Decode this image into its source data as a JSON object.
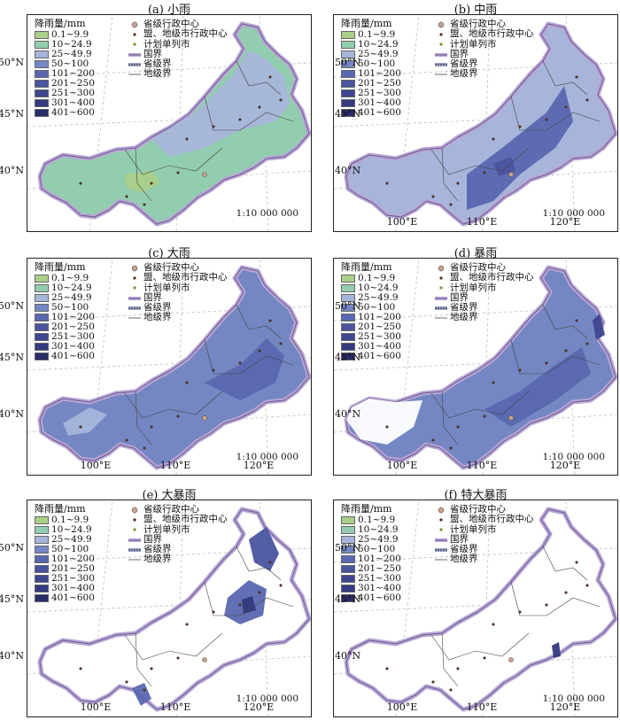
{
  "legend_title": "降雨量/mm",
  "classes": [
    {
      "label": "0.1~9.9",
      "color": "#a9cf89"
    },
    {
      "label": "10~24.9",
      "color": "#93cdb0"
    },
    {
      "label": "25~49.9",
      "color": "#a7b5da"
    },
    {
      "label": "50~100",
      "color": "#7487c3"
    },
    {
      "label": "101~200",
      "color": "#5a67b0"
    },
    {
      "label": "201~250",
      "color": "#4a549f"
    },
    {
      "label": "251~300",
      "color": "#3e4690"
    },
    {
      "label": "301~400",
      "color": "#333a80"
    },
    {
      "label": "401~600",
      "color": "#282c68"
    }
  ],
  "symbols": {
    "provincial_center": "省级行政中心",
    "league_city_center": "盟、地级市行政中心",
    "planned_city": "计划单列市",
    "national_border": "国界",
    "provincial_border": "省级界",
    "prefecture_border": "地级界"
  },
  "scale": "1:10 000 000",
  "lat_labels": [
    "50°N",
    "45°N",
    "40°N"
  ],
  "lon_labels": [
    "100°E",
    "110°E",
    "120°E"
  ],
  "panels": [
    {
      "title": "(a) 小雨",
      "base": "#93cdb0",
      "note": "light rain"
    },
    {
      "title": "(b) 中雨",
      "base": "#a7b5da"
    },
    {
      "title": "(c) 大雨",
      "base": "#7487c3"
    },
    {
      "title": "(d) 暴雨",
      "base": "#7487c3"
    },
    {
      "title": "(e) 大暴雨",
      "base": "#ffffff"
    },
    {
      "title": "(f) 特大暴雨",
      "base": "#ffffff"
    }
  ]
}
